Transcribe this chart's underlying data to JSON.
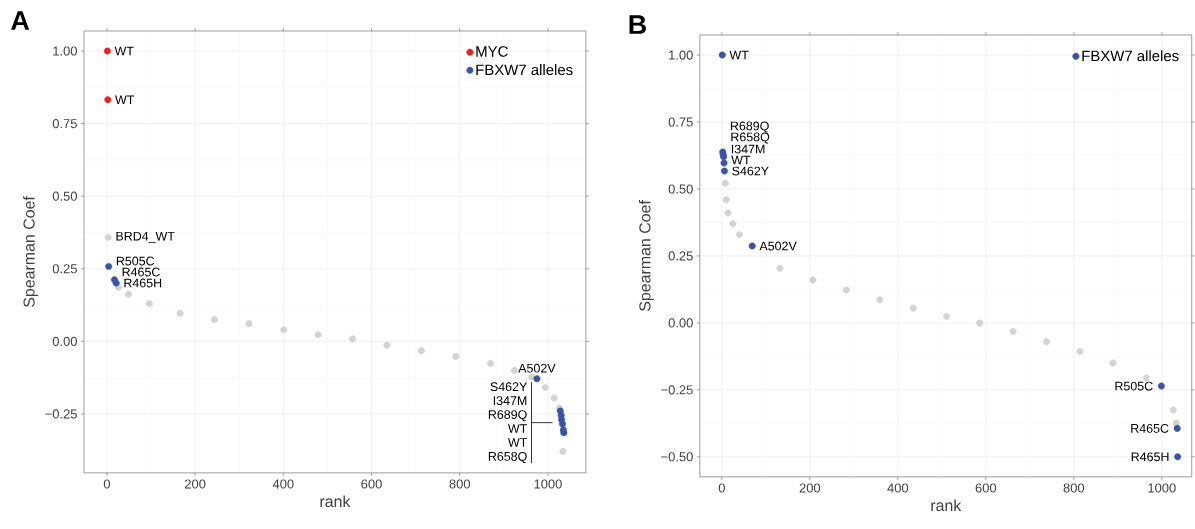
{
  "chart_data": [
    {
      "type": "scatter",
      "title": "A",
      "xlabel": "rank",
      "ylabel": "Spearman Coef",
      "xlim": [
        -52,
        1086
      ],
      "ylim": [
        -0.453,
        1.069
      ],
      "xticks": [
        0,
        200,
        400,
        600,
        800,
        1000
      ],
      "yticks": [
        {
          "value": 1.0,
          "label": "1.00"
        },
        {
          "value": 0.75,
          "label": "0.75"
        },
        {
          "value": 0.5,
          "label": "0.50"
        },
        {
          "value": 0.25,
          "label": "0.25"
        },
        {
          "value": 0.0,
          "label": "0.00"
        },
        {
          "value": -0.25,
          "label": "−0.25"
        }
      ],
      "grid": true,
      "marker": "circle",
      "legend": "top right",
      "series": [
        {
          "color": "#d3d3d3",
          "x": [
            3,
            26,
            49,
            96,
            166,
            244,
            322,
            401,
            479,
            557,
            635,
            713,
            791,
            870,
            924,
            963,
            994,
            1014,
            1026,
            1034
          ],
          "values": [
            0.358,
            0.186,
            0.162,
            0.13,
            0.097,
            0.075,
            0.061,
            0.04,
            0.023,
            0.008,
            -0.013,
            -0.032,
            -0.052,
            -0.076,
            -0.1,
            -0.123,
            -0.159,
            -0.195,
            -0.23,
            -0.379
          ]
        },
        {
          "name": "MYC",
          "color": "#e8231f",
          "x": [
            1,
            2
          ],
          "values": [
            1.0,
            0.832
          ]
        },
        {
          "name": "FBXW7 alleles",
          "color": "#3a53a4",
          "x": [
            4,
            17,
            21,
            975,
            1028,
            1030,
            1031,
            1033,
            1035,
            1036
          ],
          "values": [
            0.258,
            0.212,
            0.201,
            -0.129,
            -0.24,
            -0.255,
            -0.27,
            -0.285,
            -0.305,
            -0.315
          ]
        }
      ],
      "annotations": [
        {
          "text": "WT",
          "x": 1,
          "y": 1.0
        },
        {
          "text": "WT",
          "x": 2,
          "y": 0.832
        },
        {
          "text": "BRD4_WT",
          "x": 3,
          "y": 0.358
        },
        {
          "text": "R505C",
          "x": 4,
          "y": 0.258
        },
        {
          "text": "R465C",
          "x": 17,
          "y": 0.212
        },
        {
          "text": "R465H",
          "x": 21,
          "y": 0.201
        },
        {
          "text": "A502V",
          "x": 975,
          "y": -0.129
        },
        {
          "text": "S462Y I347M R689Q WT WT R658Q",
          "x": 1033,
          "y": -0.28
        }
      ]
    },
    {
      "type": "scatter",
      "title": "B",
      "xlabel": "rank",
      "ylabel": "Spearman Coef",
      "xlim": [
        -50,
        1068
      ],
      "ylim": [
        -0.575,
        1.075
      ],
      "xticks": [
        0,
        200,
        400,
        600,
        800,
        1000
      ],
      "yticks": [
        {
          "value": 1.0,
          "label": "1.00"
        },
        {
          "value": 0.75,
          "label": "0.75"
        },
        {
          "value": 0.5,
          "label": "0.50"
        },
        {
          "value": 0.25,
          "label": "0.25"
        },
        {
          "value": 0.0,
          "label": "0.00"
        },
        {
          "value": -0.25,
          "label": "−0.25"
        },
        {
          "value": -0.5,
          "label": "−0.50"
        }
      ],
      "grid": true,
      "marker": "circle",
      "legend": "top right",
      "series": [
        {
          "color": "#d3d3d3",
          "x": [
            8,
            10,
            14,
            25,
            40,
            132,
            207,
            283,
            359,
            435,
            511,
            586,
            662,
            738,
            814,
            889,
            965,
            1026,
            1033
          ],
          "values": [
            0.521,
            0.46,
            0.41,
            0.37,
            0.33,
            0.204,
            0.16,
            0.123,
            0.086,
            0.055,
            0.024,
            -0.001,
            -0.032,
            -0.07,
            -0.107,
            -0.15,
            -0.206,
            -0.325,
            -0.374
          ]
        },
        {
          "name": "FBXW7 alleles",
          "color": "#3a53a4",
          "x": [
            1,
            2,
            3,
            4,
            5,
            6,
            69,
            999,
            1035,
            1036
          ],
          "values": [
            1.0,
            0.638,
            0.629,
            0.62,
            0.597,
            0.567,
            0.287,
            -0.236,
            -0.394,
            -0.5
          ]
        }
      ],
      "annotations": [
        {
          "text": "WT",
          "x": 1,
          "y": 1.0
        },
        {
          "text": "R689Q",
          "x": 2,
          "y": 0.638
        },
        {
          "text": "R658Q",
          "x": 3,
          "y": 0.629
        },
        {
          "text": "I347M",
          "x": 4,
          "y": 0.62
        },
        {
          "text": "WT",
          "x": 5,
          "y": 0.597
        },
        {
          "text": "S462Y",
          "x": 6,
          "y": 0.567
        },
        {
          "text": "A502V",
          "x": 69,
          "y": 0.287
        },
        {
          "text": "R505C",
          "x": 999,
          "y": -0.236
        },
        {
          "text": "R465C",
          "x": 1035,
          "y": -0.394
        },
        {
          "text": "R465H",
          "x": 1036,
          "y": -0.5
        }
      ]
    }
  ]
}
